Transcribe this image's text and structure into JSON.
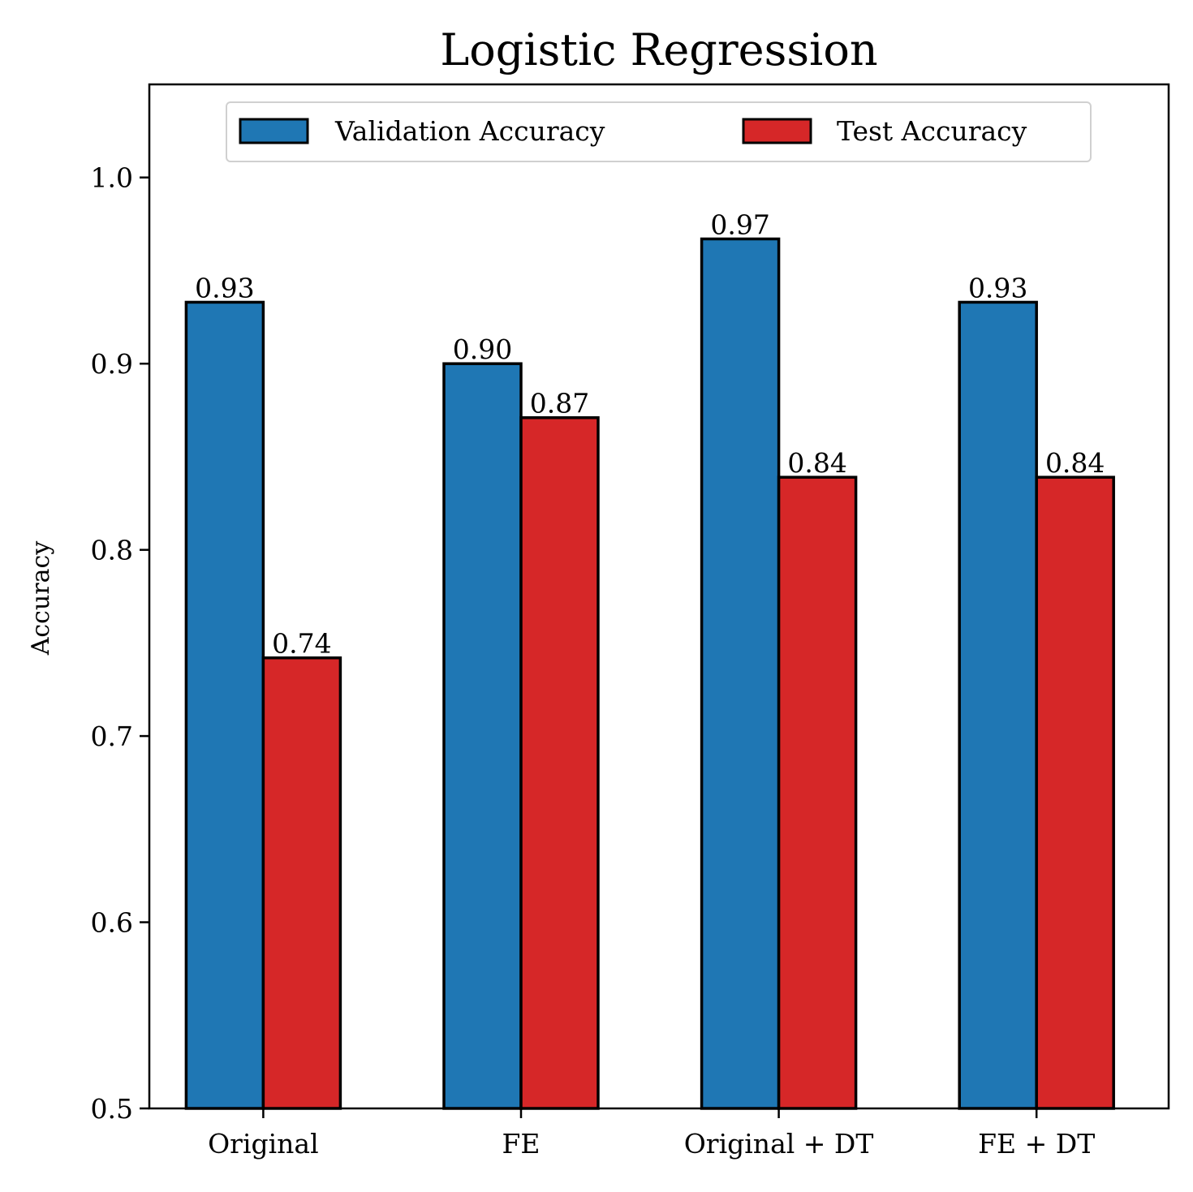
{
  "chart_data": {
    "type": "bar",
    "title": "Logistic Regression",
    "xlabel": "",
    "ylabel": "Accuracy",
    "ylim": [
      0.5,
      1.05
    ],
    "yticks": [
      0.5,
      0.6,
      0.7,
      0.8,
      0.9,
      1.0
    ],
    "ytick_labels": [
      "0.5",
      "0.6",
      "0.7",
      "0.8",
      "0.9",
      "1.0"
    ],
    "categories": [
      "Original",
      "FE",
      "Original + DT",
      "FE + DT"
    ],
    "series": [
      {
        "name": "Validation Accuracy",
        "color": "#1f77b4",
        "values": [
          0.933,
          0.9,
          0.967,
          0.933
        ],
        "labels": [
          "0.93",
          "0.90",
          "0.97",
          "0.93"
        ]
      },
      {
        "name": "Test Accuracy",
        "color": "#d62728",
        "values": [
          0.742,
          0.871,
          0.839,
          0.839
        ],
        "labels": [
          "0.74",
          "0.87",
          "0.84",
          "0.84"
        ]
      }
    ],
    "legend": "top-center",
    "grid": false
  }
}
